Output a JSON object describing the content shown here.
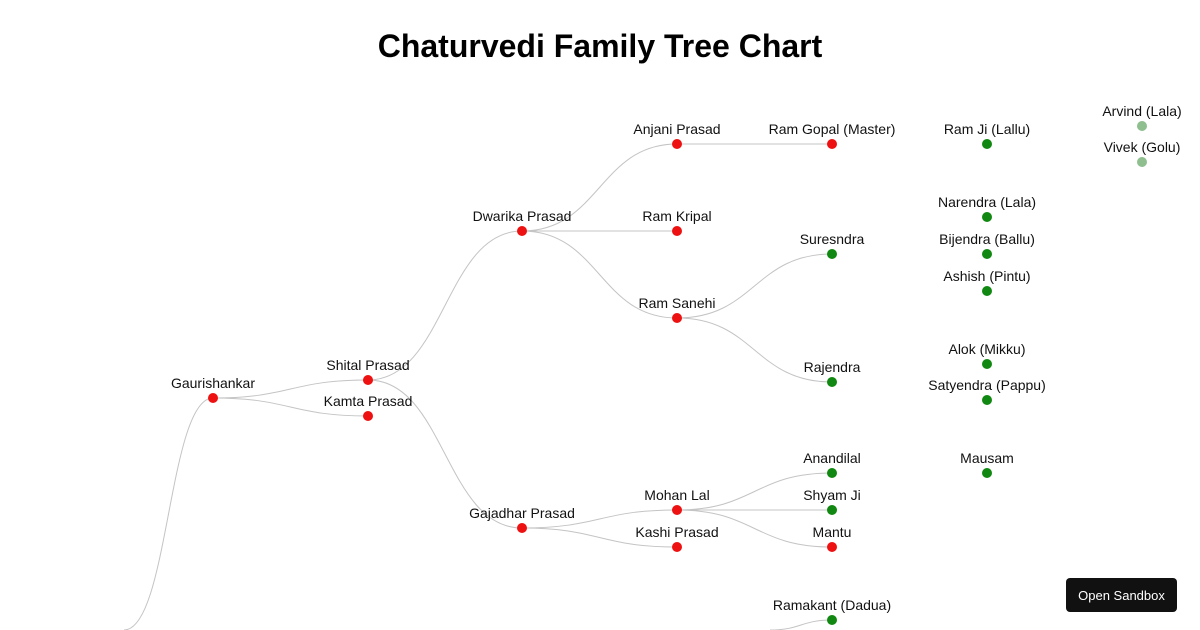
{
  "title": "Chaturvedi Family Tree Chart",
  "sandbox_button_label": "Open Sandbox",
  "colors": {
    "node_red": "#ee1111",
    "node_green": "#118811",
    "node_faded": "#8fbf8f",
    "link": "#c4c4c4"
  },
  "tree": {
    "nodes": [
      {
        "id": "root",
        "label": "",
        "status": "none"
      },
      {
        "id": "gaurishankar",
        "label": "Gaurishankar",
        "status": "red"
      },
      {
        "id": "shital-prasad",
        "label": "Shital Prasad",
        "status": "red"
      },
      {
        "id": "kamta-prasad",
        "label": "Kamta Prasad",
        "status": "red"
      },
      {
        "id": "dwarika-prasad",
        "label": "Dwarika Prasad",
        "status": "red"
      },
      {
        "id": "gajadhar-prasad",
        "label": "Gajadhar Prasad",
        "status": "red"
      },
      {
        "id": "anjani-prasad",
        "label": "Anjani Prasad",
        "status": "red"
      },
      {
        "id": "ram-kripal",
        "label": "Ram Kripal",
        "status": "red"
      },
      {
        "id": "ram-sanehi",
        "label": "Ram Sanehi",
        "status": "red"
      },
      {
        "id": "mohan-lal",
        "label": "Mohan Lal",
        "status": "red"
      },
      {
        "id": "kashi-prasad",
        "label": "Kashi Prasad",
        "status": "red"
      },
      {
        "id": "ram-gopal",
        "label": "Ram Gopal (Master)",
        "status": "red"
      },
      {
        "id": "suresndra",
        "label": "Suresndra",
        "status": "green"
      },
      {
        "id": "rajendra",
        "label": "Rajendra",
        "status": "green"
      },
      {
        "id": "anandilal",
        "label": "Anandilal",
        "status": "green"
      },
      {
        "id": "shyam-ji",
        "label": "Shyam Ji",
        "status": "green"
      },
      {
        "id": "mantu",
        "label": "Mantu",
        "status": "red"
      },
      {
        "id": "ramakant",
        "label": "Ramakant (Dadua)",
        "status": "green"
      },
      {
        "id": "ram-ji",
        "label": "Ram Ji (Lallu)",
        "status": "green"
      },
      {
        "id": "narendra",
        "label": "Narendra (Lala)",
        "status": "green"
      },
      {
        "id": "bijendra",
        "label": "Bijendra (Ballu)",
        "status": "green"
      },
      {
        "id": "ashish",
        "label": "Ashish (Pintu)",
        "status": "green"
      },
      {
        "id": "alok",
        "label": "Alok (Mikku)",
        "status": "green"
      },
      {
        "id": "satyendra",
        "label": "Satyendra (Pappu)",
        "status": "green"
      },
      {
        "id": "mausam",
        "label": "Mausam",
        "status": "green"
      },
      {
        "id": "arvind",
        "label": "Arvind (Lala)",
        "status": "faded"
      },
      {
        "id": "vivek",
        "label": "Vivek (Golu)",
        "status": "faded"
      }
    ],
    "links": [
      [
        "root",
        "gaurishankar"
      ],
      [
        "gaurishankar",
        "shital-prasad"
      ],
      [
        "gaurishankar",
        "kamta-prasad"
      ],
      [
        "shital-prasad",
        "dwarika-prasad"
      ],
      [
        "shital-prasad",
        "gajadhar-prasad"
      ],
      [
        "dwarika-prasad",
        "anjani-prasad"
      ],
      [
        "dwarika-prasad",
        "ram-kripal"
      ],
      [
        "dwarika-prasad",
        "ram-sanehi"
      ],
      [
        "gajadhar-prasad",
        "mohan-lal"
      ],
      [
        "gajadhar-prasad",
        "kashi-prasad"
      ],
      [
        "anjani-prasad",
        "ram-gopal"
      ],
      [
        "ram-sanehi",
        "suresndra"
      ],
      [
        "ram-sanehi",
        "rajendra"
      ],
      [
        "mohan-lal",
        "anandilal"
      ],
      [
        "mohan-lal",
        "shyam-ji"
      ],
      [
        "mohan-lal",
        "mantu"
      ],
      [
        "ramakant-parent",
        "ramakant"
      ]
    ]
  }
}
